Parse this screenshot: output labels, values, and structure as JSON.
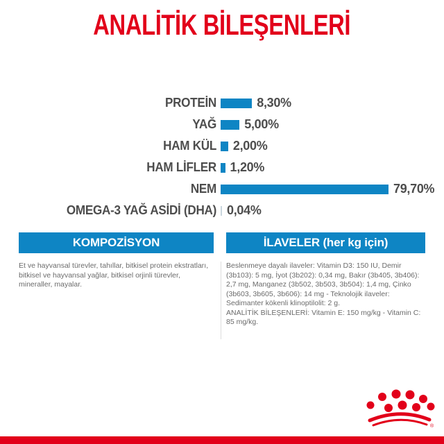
{
  "page": {
    "title": "ANALİTİK BİLEŞENLERİ"
  },
  "chart_data": {
    "type": "bar",
    "orientation": "horizontal",
    "title": "ANALİTİK BİLEŞENLERİ",
    "unit": "%",
    "categories": [
      "PROTEİN",
      "YAĞ",
      "HAM KÜL",
      "HAM LİFLER",
      "NEM",
      "OMEGA-3 YAĞ ASİDİ (DHA)"
    ],
    "values": [
      8.3,
      5.0,
      2.0,
      1.2,
      79.7,
      0.04
    ],
    "value_labels": [
      "8,30%",
      "5,00%",
      "2,00%",
      "1,20%",
      "79,70%",
      "0,04%"
    ],
    "bar_color": "#0e85c4",
    "axis": "none",
    "grid": false,
    "legend": false
  },
  "composition": {
    "header": "KOMPOZİSYON",
    "body": "Et ve hayvansal türevler, tahıllar, bitkisel protein ekstratları, bitkisel ve hayvansal yağlar, bitkisel orjinli türevler, mineraller, mayalar."
  },
  "additives": {
    "header": "İLAVELER (her kg için)",
    "body": "Beslenmeye dayalı ilaveler: Vitamin D3: 150 IU, Demir (3b103): 5 mg, İyot (3b202): 0,34 mg, Bakır (3b405, 3b406): 2,7 mg, Manganez (3b502, 3b503, 3b504): 1,4 mg, Çinko (3b603, 3b605, 3b606): 14 mg - Teknolojik ilaveler: Sedimanter kökenli klinoptilolit: 2 g.\nANALİTİK BİLEŞENLERİ: Vitamin E: 150 mg/kg - Vitamin C: 85 mg/kg."
  },
  "branding": {
    "logo": "royal-canin-crown",
    "registered_mark": "®"
  },
  "colors": {
    "accent_red": "#e2001a",
    "accent_blue": "#0e85c4",
    "tiny_bar_gray": "#c9d6de",
    "text_dark": "#4d4d4d",
    "text_gray": "#6b6b6b"
  }
}
